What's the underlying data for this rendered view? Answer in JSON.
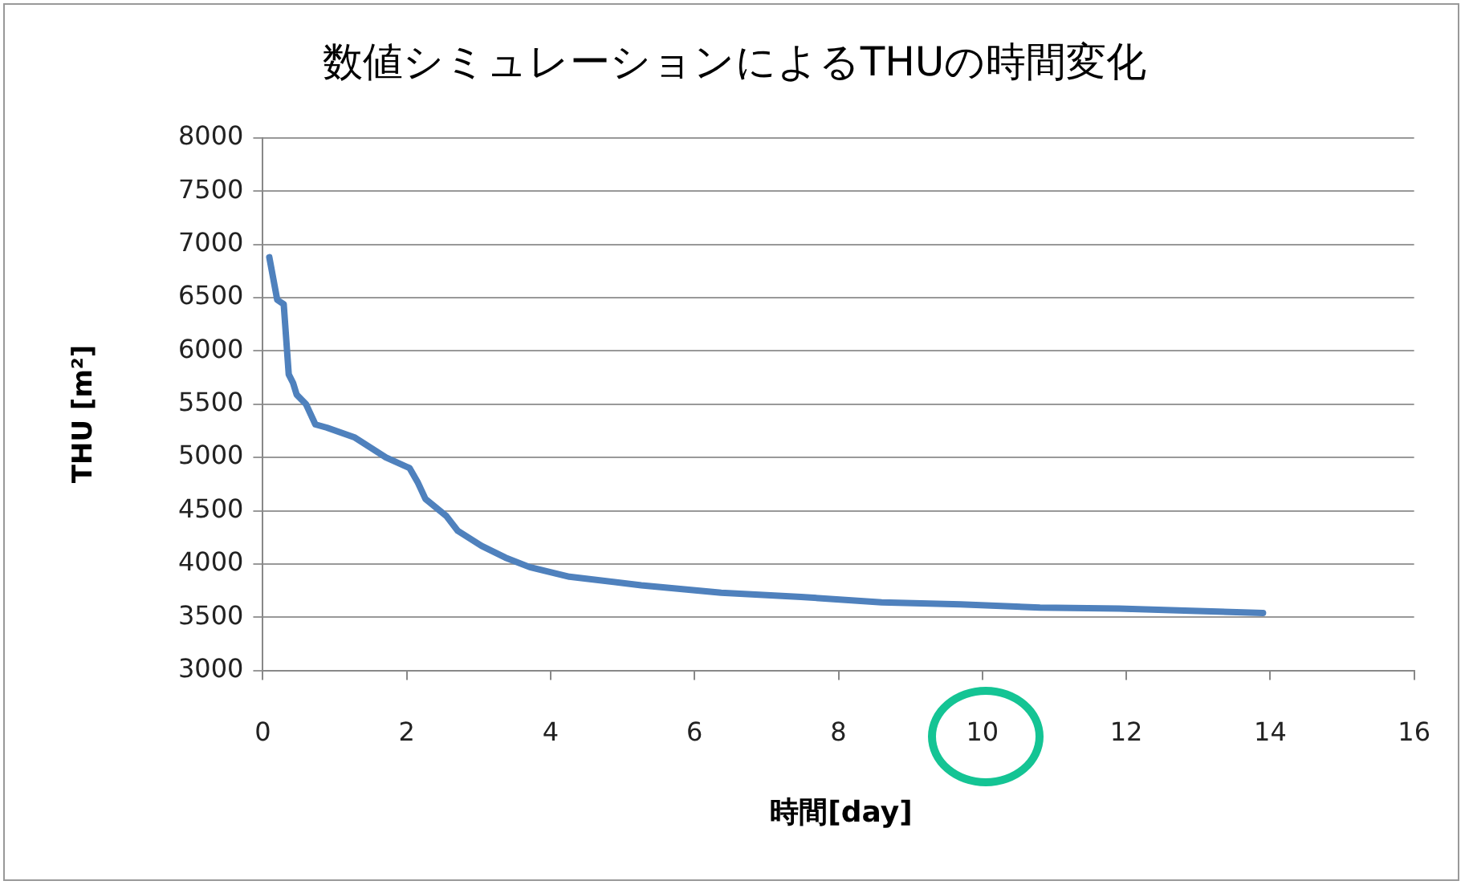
{
  "chart_data": {
    "type": "line",
    "title": "数値シミュレーションによるTHUの時間変化",
    "xlabel": "時間[day]",
    "ylabel": "THU [m²]",
    "xlim": [
      0,
      16
    ],
    "xticks": [
      0,
      2,
      4,
      6,
      8,
      10,
      12,
      14,
      16
    ],
    "ylim": [
      3000,
      8000
    ],
    "yticks": [
      3000,
      3500,
      4000,
      4500,
      5000,
      5500,
      6000,
      6500,
      7000,
      7500,
      8000
    ],
    "grid": "y",
    "legend": false,
    "marker": "none",
    "line_style": "solid",
    "series": [
      {
        "color": "#4f81bd",
        "x": [
          0.09,
          0.2,
          0.29,
          0.36,
          0.42,
          0.47,
          0.6,
          0.73,
          0.89,
          1.27,
          1.71,
          2.04,
          2.15,
          2.26,
          2.55,
          2.71,
          3.04,
          3.37,
          3.71,
          4.26,
          5.26,
          6.37,
          7.48,
          8.6,
          9.7,
          10.8,
          11.9,
          12.9,
          13.9
        ],
        "values": [
          6880,
          6480,
          6440,
          5780,
          5700,
          5590,
          5500,
          5310,
          5280,
          5190,
          5000,
          4900,
          4770,
          4610,
          4450,
          4310,
          4170,
          4060,
          3970,
          3880,
          3800,
          3730,
          3690,
          3640,
          3620,
          3590,
          3580,
          3560,
          3540
        ]
      }
    ]
  }
}
